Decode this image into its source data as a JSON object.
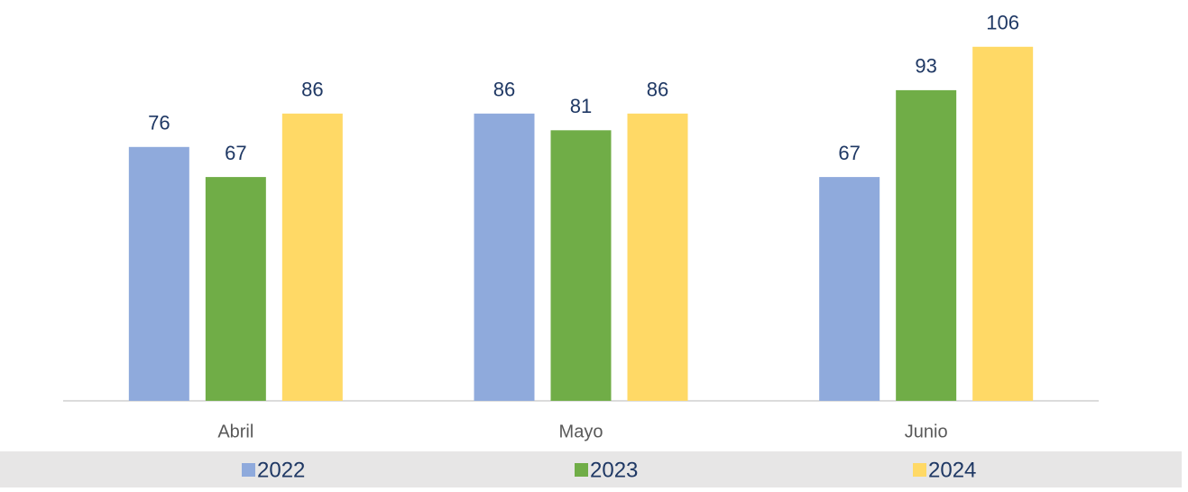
{
  "chart_data": {
    "type": "bar",
    "categories": [
      "Abril",
      "Mayo",
      "Junio"
    ],
    "series": [
      {
        "name": "2022",
        "color": "#8faadc",
        "values": [
          76,
          86,
          67
        ]
      },
      {
        "name": "2023",
        "color": "#70ad47",
        "values": [
          67,
          81,
          93
        ]
      },
      {
        "name": "2024",
        "color": "#ffd966",
        "values": [
          86,
          86,
          106
        ]
      }
    ],
    "ylim": [
      0,
      120
    ],
    "legend": "bottom"
  }
}
